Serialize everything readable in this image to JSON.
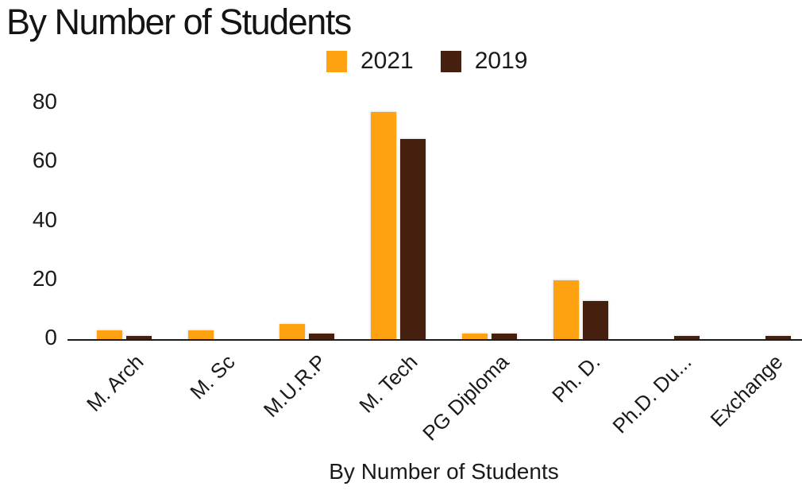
{
  "header": {
    "title": "By Number of Students"
  },
  "chart_data": {
    "type": "bar",
    "title": "By Number of Students",
    "xlabel": "By Number of Students",
    "ylabel": "",
    "categories": [
      "M. Arch",
      "M. Sc",
      "M.U.R.P",
      "M. Tech",
      "PG Diploma",
      "Ph. D.",
      "Ph.D. Du...",
      "Exchange"
    ],
    "series": [
      {
        "name": "2021",
        "color": "#FFA211",
        "values": [
          3,
          3,
          5,
          77,
          2,
          20,
          0,
          0
        ]
      },
      {
        "name": "2019",
        "color": "#45200F",
        "values": [
          1,
          0,
          2,
          68,
          2,
          13,
          1,
          1
        ]
      }
    ],
    "ylim": [
      0,
      80
    ],
    "yticks": [
      0,
      20,
      40,
      60,
      80
    ],
    "grid": false,
    "legend_position": "top-center",
    "x_tick_rotation": -45,
    "colors": {
      "text": "#1a1a1a",
      "axis": "#1c1c1c",
      "background": "#ffffff"
    }
  }
}
